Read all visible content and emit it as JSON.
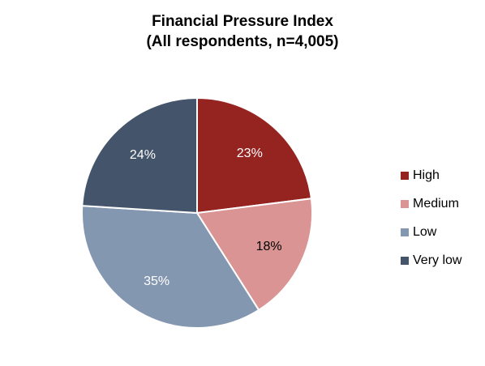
{
  "chart_data": {
    "type": "pie",
    "title": "Financial Pressure Index",
    "subtitle": "(All respondents, n=4,005)",
    "labels": [
      "High",
      "Medium",
      "Low",
      "Very low"
    ],
    "values": [
      23,
      18,
      35,
      24
    ],
    "data_labels": [
      "23%",
      "18%",
      "35%",
      "24%"
    ],
    "colors": [
      "#952320",
      "#da9493",
      "#8497b0",
      "#44546a"
    ],
    "legend_position": "right"
  }
}
